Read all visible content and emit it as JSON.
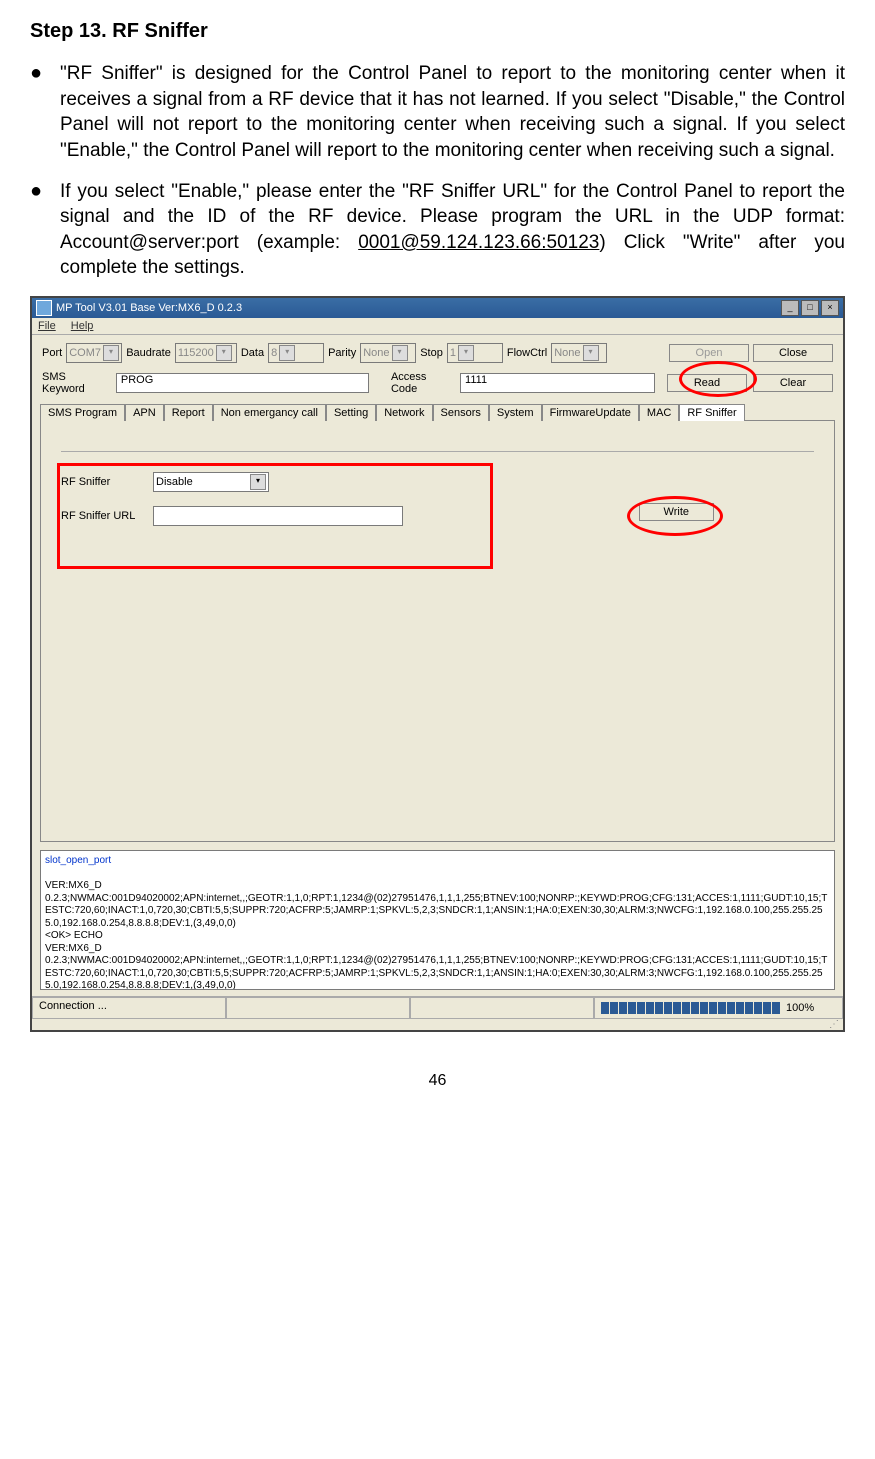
{
  "doc": {
    "step_title": "Step 13. RF Sniffer",
    "bullet1": "\"RF Sniffer\" is designed for the Control Panel to report to the monitoring center when it receives a signal from a RF device that it has not learned. If you select \"Disable,\" the Control Panel will not report to the monitoring center when receiving such a signal. If you select \"Enable,\" the Control Panel will report to the monitoring center when receiving such a signal.",
    "bullet2a": "If you select \"Enable,\" please enter the \"RF Sniffer URL\" for the Control Panel to report the signal and the ID of the RF device. Please program the URL in the UDP format: Account@server:port (example: ",
    "bullet2_underline": "0001@59.124.123.66:50123",
    "bullet2b": ") Click \"Write\" after you complete the settings.",
    "page_number": "46"
  },
  "win": {
    "title": "MP Tool V3.01  Base Ver:MX6_D 0.2.3",
    "menu": {
      "file": "File",
      "help": "Help"
    },
    "toolbar": {
      "port_label": "Port",
      "port_value": "COM7",
      "baud_label": "Baudrate",
      "baud_value": "115200",
      "data_label": "Data",
      "data_value": "8",
      "parity_label": "Parity",
      "parity_value": "None",
      "stop_label": "Stop",
      "stop_value": "1",
      "flow_label": "FlowCtrl",
      "flow_value": "None",
      "open": "Open",
      "close": "Close"
    },
    "row2": {
      "sms_label": "SMS Keyword",
      "sms_value": "PROG",
      "access_label": "Access Code",
      "access_value": "1111",
      "read": "Read",
      "clear": "Clear"
    },
    "tabs": [
      "SMS Program",
      "APN",
      "Report",
      "Non emergancy call",
      "Setting",
      "Network",
      "Sensors",
      "System",
      "FirmwareUpdate",
      "MAC",
      "RF Sniffer"
    ],
    "active_tab": 10,
    "panel": {
      "rf_label": "RF Sniffer",
      "rf_value": "Disable",
      "url_label": "RF Sniffer URL",
      "url_value": "",
      "write": "Write"
    },
    "log": {
      "line1": "slot_open_port",
      "line2": "VER:MX6_D",
      "line3": "0.2.3;NWMAC:001D94020002;APN:internet,,;GEOTR:1,1,0;RPT:1,1234@(02)27951476,1,1,1,255;BTNEV:100;NONRP:;KEYWD:PROG;CFG:131;ACCES:1,1111;GUDT:10,15;TESTC:720,60;INACT:1,0,720,30;CBTI:5,5;SUPPR:720;ACFRP:5;JAMRP:1;SPKVL:5,2,3;SNDCR:1,1;ANSIN:1;HA:0;EXEN:30,30;ALRM:3;NWCFG:1,192.168.0.100,255.255.255.0,192.168.0.254,8.8.8.8;DEV:1,(3,49,0,0)",
      "line4": "<OK> ECHO",
      "line5": "VER:MX6_D",
      "line6": "0.2.3;NWMAC:001D94020002;APN:internet,,;GEOTR:1,1,0;RPT:1,1234@(02)27951476,1,1,1,255;BTNEV:100;NONRP:;KEYWD:PROG;CFG:131;ACCES:1,1111;GUDT:10,15;TESTC:720,60;INACT:1,0,720,30;CBTI:5,5;SUPPR:720;ACFRP:5;JAMRP:1;SPKVL:5,2,3;SNDCR:1,1;ANSIN:1;HA:0;EXEN:30,30;ALRM:3;NWCFG:1,192.168.0.100,255.255.255.0,192.168.0.254,8.8.8.8;DEV:1,(3,49,0,0)"
    },
    "status": {
      "conn": "Connection ...",
      "percent": "100%"
    },
    "colors": {
      "titlebar_bg": "#3a6ea5",
      "window_bg": "#ece9d8",
      "red_highlight": "#ff0000",
      "progress_fill": "#2a5a95",
      "text_blue": "#0033cc"
    }
  }
}
